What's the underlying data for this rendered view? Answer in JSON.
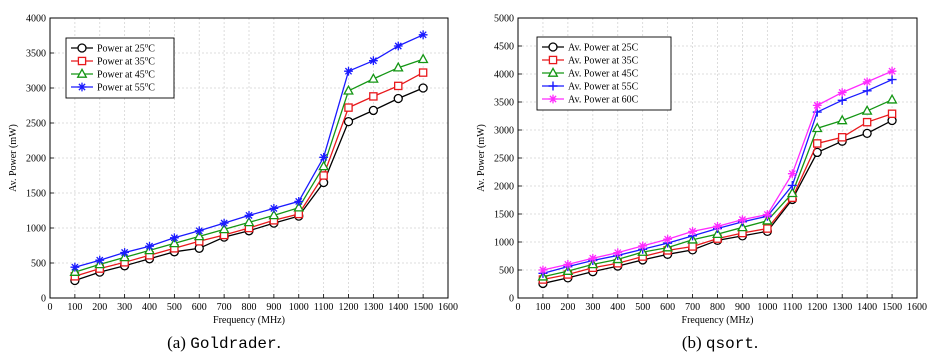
{
  "chart_data": [
    {
      "type": "line",
      "title": "",
      "xlabel": "Frequency (MHz)",
      "ylabel": "Av. Power (mW)",
      "xlim": [
        0,
        1600
      ],
      "ylim": [
        0,
        4000
      ],
      "xticks": [
        0,
        100,
        200,
        300,
        400,
        500,
        600,
        700,
        800,
        900,
        1000,
        1100,
        1200,
        1300,
        1400,
        1500,
        1600
      ],
      "yticks": [
        0,
        500,
        1000,
        1500,
        2000,
        2500,
        3000,
        3500,
        4000
      ],
      "grid": true,
      "legend_position": "top-left",
      "x": [
        100,
        200,
        300,
        400,
        500,
        600,
        700,
        800,
        900,
        1000,
        1100,
        1200,
        1300,
        1400,
        1500
      ],
      "caption": {
        "prefix": "(a) ",
        "name": "Goldrader",
        "suffix": "."
      },
      "series": [
        {
          "name": "Power at 25°C",
          "legend_main": "Power at 25",
          "legend_sup": "o",
          "legend_unit": "C",
          "color": "#000000",
          "marker": "circle",
          "values": [
            250,
            370,
            460,
            560,
            660,
            710,
            870,
            960,
            1070,
            1170,
            1650,
            2520,
            2680,
            2850,
            3000
          ]
        },
        {
          "name": "Power at 35°C",
          "legend_main": "Power at 35",
          "legend_sup": "o",
          "legend_unit": "C",
          "color": "#e8191c",
          "marker": "square",
          "values": [
            310,
            420,
            510,
            610,
            710,
            810,
            900,
            1000,
            1110,
            1200,
            1750,
            2720,
            2880,
            3030,
            3220
          ]
        },
        {
          "name": "Power at 45°C",
          "legend_main": "Power at 45",
          "legend_sup": "o",
          "legend_unit": "C",
          "color": "#149614",
          "marker": "triangle",
          "values": [
            370,
            480,
            580,
            680,
            780,
            880,
            980,
            1080,
            1180,
            1290,
            1880,
            2960,
            3130,
            3290,
            3410
          ]
        },
        {
          "name": "Power at 55°C",
          "legend_main": "Power at 55",
          "legend_sup": "o",
          "legend_unit": "C",
          "color": "#1a1aff",
          "marker": "star",
          "values": [
            440,
            540,
            650,
            740,
            860,
            960,
            1070,
            1180,
            1280,
            1380,
            2010,
            3240,
            3390,
            3600,
            3760
          ]
        }
      ]
    },
    {
      "type": "line",
      "title": "",
      "xlabel": "Frequency (MHz)",
      "ylabel": "Av. Power (mW)",
      "xlim": [
        0,
        1600
      ],
      "ylim": [
        0,
        5000
      ],
      "xticks": [
        0,
        100,
        200,
        300,
        400,
        500,
        600,
        700,
        800,
        900,
        1000,
        1100,
        1200,
        1300,
        1400,
        1500,
        1600
      ],
      "yticks": [
        0,
        500,
        1000,
        1500,
        2000,
        2500,
        3000,
        3500,
        4000,
        4500,
        5000
      ],
      "grid": true,
      "legend_position": "top-left",
      "x": [
        100,
        200,
        300,
        400,
        500,
        600,
        700,
        800,
        900,
        1000,
        1100,
        1200,
        1300,
        1400,
        1500
      ],
      "caption": {
        "prefix": "(b) ",
        "name": "qsort",
        "suffix": "."
      },
      "series": [
        {
          "name": "Av. Power at 25C",
          "legend_main": "Av. Power at 25C",
          "color": "#000000",
          "marker": "circle",
          "values": [
            260,
            360,
            470,
            570,
            680,
            780,
            860,
            1030,
            1110,
            1190,
            1760,
            2600,
            2800,
            2940,
            3170
          ]
        },
        {
          "name": "Av. Power at 35C",
          "legend_main": "Av. Power at 35C",
          "color": "#e8191c",
          "marker": "square",
          "values": [
            330,
            420,
            540,
            620,
            740,
            850,
            920,
            1060,
            1160,
            1240,
            1790,
            2760,
            2870,
            3140,
            3290
          ]
        },
        {
          "name": "Av. Power at 45C",
          "legend_main": "Av. Power at 45C",
          "color": "#149614",
          "marker": "triangle",
          "values": [
            380,
            480,
            600,
            690,
            820,
            900,
            1040,
            1140,
            1260,
            1380,
            1870,
            3030,
            3170,
            3340,
            3540
          ]
        },
        {
          "name": "Av. Power at 55C",
          "legend_main": "Av. Power at 55C",
          "color": "#1a1aff",
          "marker": "plus",
          "values": [
            440,
            560,
            670,
            760,
            870,
            980,
            1110,
            1240,
            1360,
            1460,
            2010,
            3320,
            3530,
            3700,
            3900
          ]
        },
        {
          "name": "Av. Power at 60C",
          "legend_main": "Av. Power at 60C",
          "color": "#ff2bff",
          "marker": "star",
          "values": [
            500,
            600,
            710,
            810,
            930,
            1050,
            1190,
            1280,
            1400,
            1490,
            2220,
            3440,
            3670,
            3860,
            4050
          ]
        }
      ]
    }
  ]
}
